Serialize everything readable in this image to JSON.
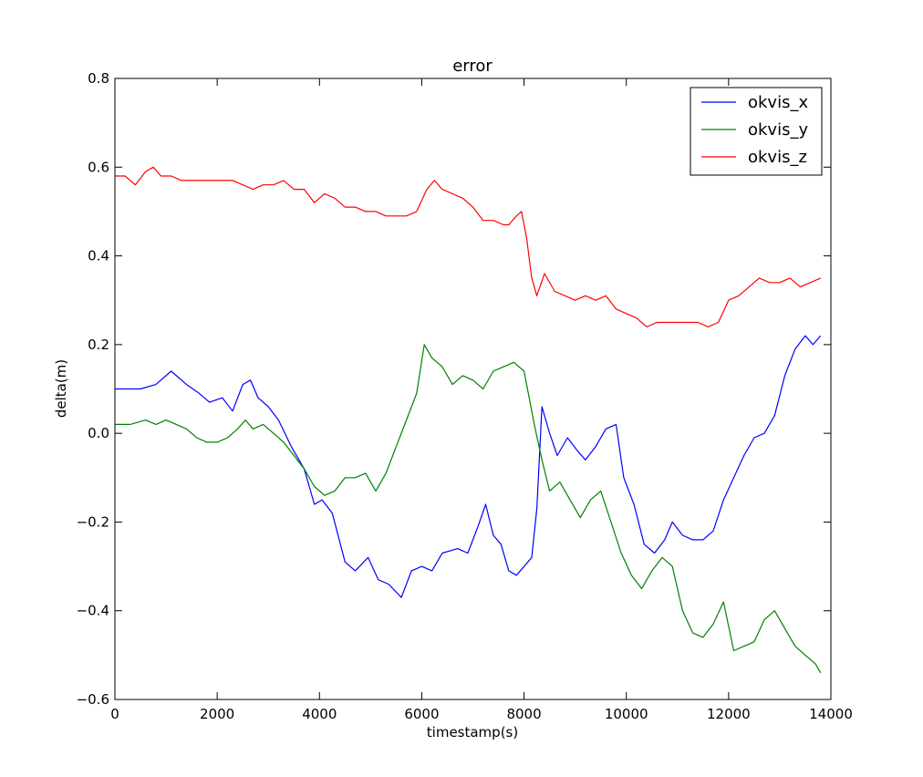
{
  "chart_data": {
    "type": "line",
    "title": "error",
    "xlabel": "timestamp(s)",
    "ylabel": "delta(m)",
    "xlim": [
      0,
      14000
    ],
    "ylim": [
      -0.6,
      0.8
    ],
    "xticks": [
      0,
      2000,
      4000,
      6000,
      8000,
      10000,
      12000,
      14000
    ],
    "xtick_labels": [
      "0",
      "2000",
      "4000",
      "6000",
      "8000",
      "10000",
      "12000",
      "14000"
    ],
    "yticks": [
      -0.6,
      -0.4,
      -0.2,
      0.0,
      0.2,
      0.4,
      0.6,
      0.8
    ],
    "ytick_labels": [
      "−0.6",
      "−0.4",
      "−0.2",
      "0.0",
      "0.2",
      "0.4",
      "0.6",
      "0.8"
    ],
    "grid": false,
    "legend": "top-right",
    "series": [
      {
        "name": "okvis_x",
        "color": "#0000ff",
        "x": [
          0,
          500,
          800,
          1100,
          1400,
          1650,
          1850,
          2100,
          2300,
          2500,
          2650,
          2800,
          3000,
          3200,
          3450,
          3700,
          3900,
          4050,
          4250,
          4500,
          4700,
          4950,
          5150,
          5350,
          5600,
          5800,
          6000,
          6200,
          6400,
          6700,
          6900,
          7000,
          7100,
          7250,
          7400,
          7550,
          7700,
          7850,
          8000,
          8150,
          8250,
          8350,
          8500,
          8650,
          8850,
          9050,
          9200,
          9400,
          9600,
          9800,
          9950,
          10150,
          10350,
          10550,
          10750,
          10900,
          11100,
          11300,
          11500,
          11700,
          11900,
          12100,
          12300,
          12500,
          12700,
          12900,
          13100,
          13300,
          13500,
          13650,
          13800
        ],
        "values": [
          0.1,
          0.1,
          0.11,
          0.14,
          0.11,
          0.09,
          0.07,
          0.08,
          0.05,
          0.11,
          0.12,
          0.08,
          0.06,
          0.03,
          -0.03,
          -0.08,
          -0.16,
          -0.15,
          -0.18,
          -0.29,
          -0.31,
          -0.28,
          -0.33,
          -0.34,
          -0.37,
          -0.31,
          -0.3,
          -0.31,
          -0.27,
          -0.26,
          -0.27,
          -0.24,
          -0.21,
          -0.16,
          -0.23,
          -0.25,
          -0.31,
          -0.32,
          -0.3,
          -0.28,
          -0.17,
          0.06,
          0.0,
          -0.05,
          -0.01,
          -0.04,
          -0.06,
          -0.03,
          0.01,
          0.02,
          -0.1,
          -0.16,
          -0.25,
          -0.27,
          -0.24,
          -0.2,
          -0.23,
          -0.24,
          -0.24,
          -0.22,
          -0.15,
          -0.1,
          -0.05,
          -0.01,
          0.0,
          0.04,
          0.13,
          0.19,
          0.22,
          0.2,
          0.22
        ]
      },
      {
        "name": "okvis_y",
        "color": "#008000",
        "x": [
          0,
          300,
          600,
          800,
          1000,
          1200,
          1400,
          1600,
          1800,
          2000,
          2200,
          2400,
          2550,
          2700,
          2900,
          3100,
          3300,
          3500,
          3700,
          3900,
          4100,
          4300,
          4500,
          4700,
          4900,
          5100,
          5300,
          5500,
          5700,
          5900,
          6050,
          6200,
          6400,
          6600,
          6800,
          7000,
          7200,
          7400,
          7600,
          7800,
          8000,
          8200,
          8350,
          8500,
          8700,
          8900,
          9100,
          9300,
          9500,
          9700,
          9900,
          10100,
          10300,
          10500,
          10700,
          10900,
          11100,
          11300,
          11500,
          11700,
          11900,
          12100,
          12300,
          12500,
          12700,
          12900,
          13100,
          13300,
          13500,
          13700,
          13800
        ],
        "values": [
          0.02,
          0.02,
          0.03,
          0.02,
          0.03,
          0.02,
          0.01,
          -0.01,
          -0.02,
          -0.02,
          -0.01,
          0.01,
          0.03,
          0.01,
          0.02,
          0.0,
          -0.02,
          -0.05,
          -0.08,
          -0.12,
          -0.14,
          -0.13,
          -0.1,
          -0.1,
          -0.09,
          -0.13,
          -0.09,
          -0.03,
          0.03,
          0.09,
          0.2,
          0.17,
          0.15,
          0.11,
          0.13,
          0.12,
          0.1,
          0.14,
          0.15,
          0.16,
          0.14,
          0.02,
          -0.06,
          -0.13,
          -0.11,
          -0.15,
          -0.19,
          -0.15,
          -0.13,
          -0.2,
          -0.27,
          -0.32,
          -0.35,
          -0.31,
          -0.28,
          -0.3,
          -0.4,
          -0.45,
          -0.46,
          -0.43,
          -0.38,
          -0.49,
          -0.48,
          -0.47,
          -0.42,
          -0.4,
          -0.44,
          -0.48,
          -0.5,
          -0.52,
          -0.54
        ]
      },
      {
        "name": "okvis_z",
        "color": "#ff0000",
        "x": [
          0,
          200,
          400,
          600,
          750,
          900,
          1100,
          1300,
          1500,
          1700,
          1900,
          2100,
          2300,
          2500,
          2700,
          2900,
          3100,
          3300,
          3500,
          3700,
          3900,
          4100,
          4300,
          4500,
          4700,
          4900,
          5100,
          5300,
          5500,
          5700,
          5900,
          6100,
          6250,
          6400,
          6600,
          6800,
          7000,
          7200,
          7400,
          7600,
          7700,
          7850,
          7950,
          8050,
          8150,
          8250,
          8400,
          8600,
          8800,
          9000,
          9200,
          9400,
          9600,
          9800,
          10000,
          10200,
          10400,
          10600,
          10800,
          11000,
          11200,
          11400,
          11600,
          11800,
          12000,
          12200,
          12400,
          12600,
          12800,
          13000,
          13200,
          13400,
          13600,
          13800
        ],
        "values": [
          0.58,
          0.58,
          0.56,
          0.59,
          0.6,
          0.58,
          0.58,
          0.57,
          0.57,
          0.57,
          0.57,
          0.57,
          0.57,
          0.56,
          0.55,
          0.56,
          0.56,
          0.57,
          0.55,
          0.55,
          0.52,
          0.54,
          0.53,
          0.51,
          0.51,
          0.5,
          0.5,
          0.49,
          0.49,
          0.49,
          0.5,
          0.55,
          0.57,
          0.55,
          0.54,
          0.53,
          0.51,
          0.48,
          0.48,
          0.47,
          0.47,
          0.49,
          0.5,
          0.44,
          0.35,
          0.31,
          0.36,
          0.32,
          0.31,
          0.3,
          0.31,
          0.3,
          0.31,
          0.28,
          0.27,
          0.26,
          0.24,
          0.25,
          0.25,
          0.25,
          0.25,
          0.25,
          0.24,
          0.25,
          0.3,
          0.31,
          0.33,
          0.35,
          0.34,
          0.34,
          0.35,
          0.33,
          0.34,
          0.35
        ]
      }
    ]
  }
}
